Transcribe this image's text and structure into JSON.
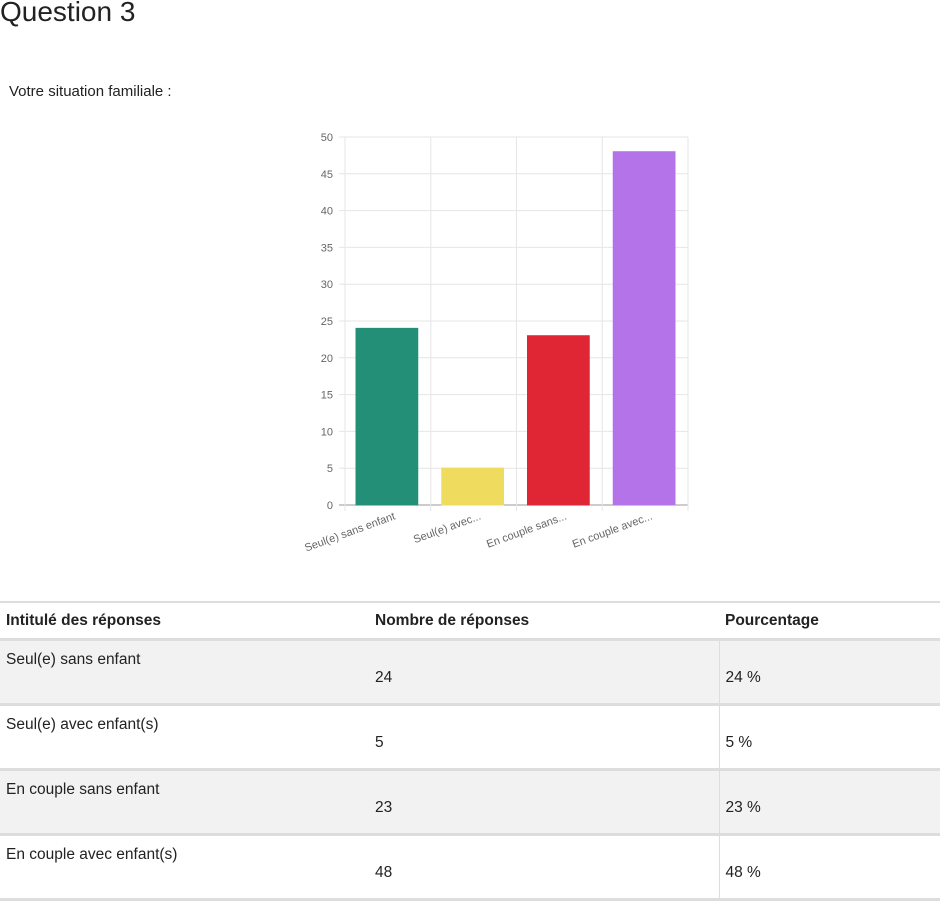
{
  "title": "Question 3",
  "question": "Votre situation familiale :",
  "chart_data": {
    "type": "bar",
    "categories": [
      "Seul(e) sans enfant",
      "Seul(e) avec...",
      "En couple sans...",
      "En couple avec..."
    ],
    "values": [
      24,
      5,
      23,
      48
    ],
    "colors": [
      "#238f77",
      "#efdb5e",
      "#e02634",
      "#b473e8"
    ],
    "ylim": [
      0,
      50
    ],
    "yticks": [
      0,
      5,
      10,
      15,
      20,
      25,
      30,
      35,
      40,
      45,
      50
    ],
    "grid": true,
    "title": "",
    "xlabel": "",
    "ylabel": ""
  },
  "table": {
    "headers": [
      "Intitulé des réponses",
      "Nombre de réponses",
      "Pourcentage"
    ],
    "rows": [
      {
        "label": "Seul(e) sans enfant",
        "count": "24",
        "percent": "24 %"
      },
      {
        "label": "Seul(e) avec enfant(s)",
        "count": "5",
        "percent": "5 %"
      },
      {
        "label": "En couple sans enfant",
        "count": "23",
        "percent": "23 %"
      },
      {
        "label": "En couple avec enfant(s)",
        "count": "48",
        "percent": "48 %"
      }
    ]
  }
}
